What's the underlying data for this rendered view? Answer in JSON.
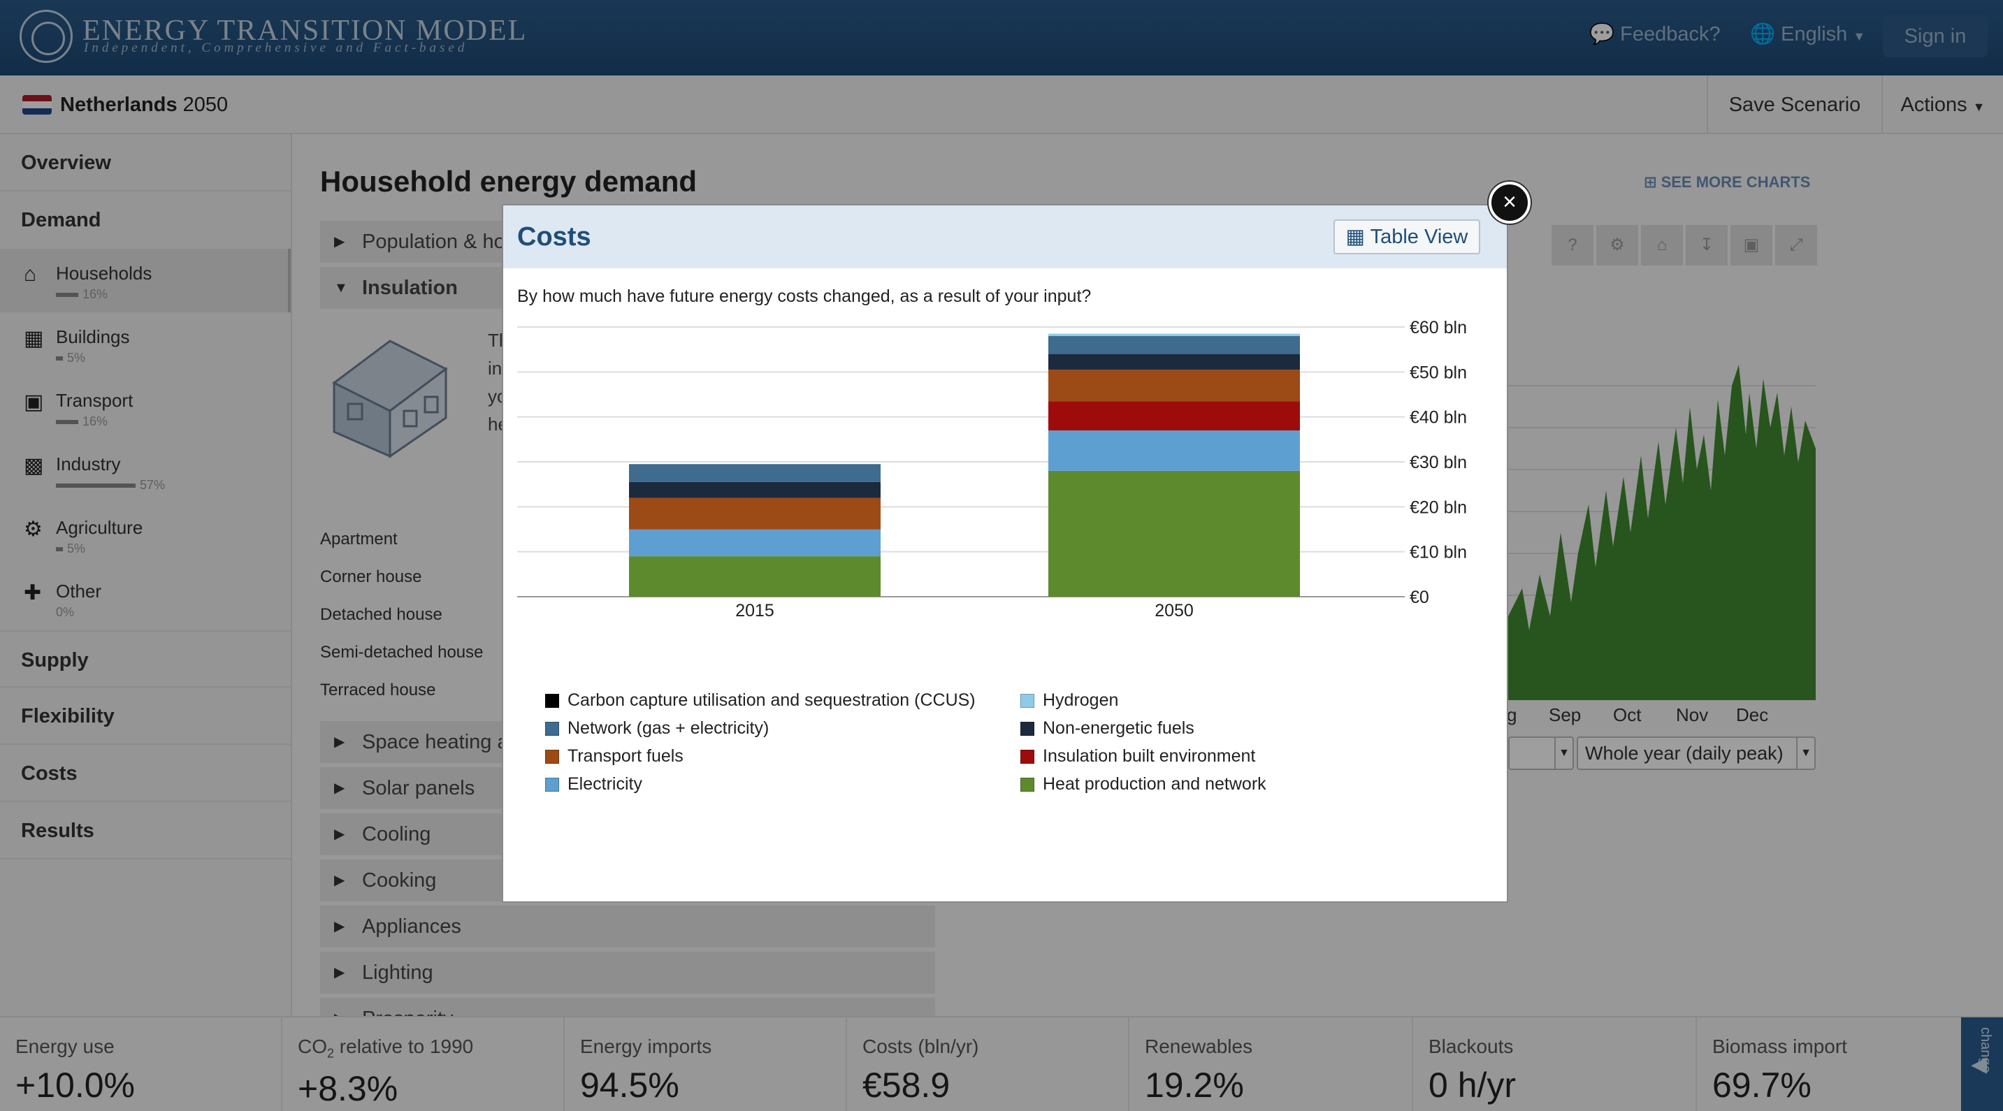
{
  "header": {
    "brand_title": "ENERGY TRANSITION MODEL",
    "brand_subtitle": "Independent, Comprehensive and Fact-based",
    "feedback": "Feedback?",
    "language": "English",
    "signin": "Sign in"
  },
  "scenario": {
    "country": "Netherlands",
    "year": "2050",
    "save": "Save Scenario",
    "actions": "Actions"
  },
  "sidebar": {
    "sections": [
      "Overview",
      "Demand",
      "Supply",
      "Flexibility",
      "Costs",
      "Results"
    ],
    "demand_items": [
      {
        "label": "Households",
        "pct": "16%",
        "share": 16,
        "icon": "home-icon"
      },
      {
        "label": "Buildings",
        "pct": "5%",
        "share": 5,
        "icon": "building-icon"
      },
      {
        "label": "Transport",
        "pct": "16%",
        "share": 16,
        "icon": "car-icon"
      },
      {
        "label": "Industry",
        "pct": "57%",
        "share": 57,
        "icon": "factory-icon"
      },
      {
        "label": "Agriculture",
        "pct": "5%",
        "share": 5,
        "icon": "tractor-icon"
      },
      {
        "label": "Other",
        "pct": "0%",
        "share": 0,
        "icon": "other-icon"
      }
    ]
  },
  "main": {
    "title": "Household energy demand",
    "see_more": "SEE MORE CHARTS",
    "accordion": [
      "Population & ho",
      "Insulation",
      "Space heating a",
      "Solar panels",
      "Cooling",
      "Cooking",
      "Appliances",
      "Lighting",
      "Prosperity"
    ],
    "house_types": [
      "Apartment",
      "Corner house",
      "Detached house",
      "Semi-detached house",
      "Terraced house"
    ],
    "desc_fragments": [
      "Th",
      "in",
      "yo",
      "he"
    ],
    "months": [
      "g",
      "Sep",
      "Oct",
      "Nov",
      "Dec"
    ],
    "select_period": "Whole year (daily peak)"
  },
  "modal": {
    "title": "Costs",
    "table_view": "Table View",
    "question": "By how much have future energy costs changed, as a result of your input?",
    "close": "×"
  },
  "chart_data": {
    "type": "bar",
    "stacked": true,
    "categories": [
      "2015",
      "2050"
    ],
    "y_ticks": [
      "€0",
      "€10 bln",
      "€20 bln",
      "€30 bln",
      "€40 bln",
      "€50 bln",
      "€60 bln"
    ],
    "ylim": [
      0,
      60
    ],
    "y_axis_position": "right",
    "grid": true,
    "legend_placement": "bottom",
    "series": [
      {
        "name": "Heat production and network",
        "color": "#5e8a2e",
        "values": [
          9,
          28
        ]
      },
      {
        "name": "Electricity",
        "color": "#5d9fd0",
        "values": [
          6,
          9
        ]
      },
      {
        "name": "Insulation built environment",
        "color": "#9e0b0b",
        "values": [
          0,
          6.5
        ]
      },
      {
        "name": "Transport fuels",
        "color": "#9c4a16",
        "values": [
          7,
          7
        ]
      },
      {
        "name": "Non-energetic fuels",
        "color": "#1c2a3e",
        "values": [
          3.5,
          3.5
        ]
      },
      {
        "name": "Network (gas + electricity)",
        "color": "#3e6b8e",
        "values": [
          4,
          4
        ]
      },
      {
        "name": "Hydrogen",
        "color": "#8ecbe8",
        "values": [
          0,
          0.5
        ]
      },
      {
        "name": "Carbon capture utilisation and sequestration (CCUS)",
        "color": "#000000",
        "values": [
          0,
          0
        ]
      }
    ],
    "legend_order": [
      "Carbon capture utilisation and sequestration (CCUS)",
      "Hydrogen",
      "Network (gas + electricity)",
      "Non-energetic fuels",
      "Transport fuels",
      "Insulation built environment",
      "Electricity",
      "Heat production and network"
    ]
  },
  "kpis": [
    {
      "label": "Energy use",
      "value": "+10.0%"
    },
    {
      "label": "CO",
      "sub": "2",
      "label_rest": " relative to 1990",
      "value": "+8.3%"
    },
    {
      "label": "Energy imports",
      "value": "94.5%"
    },
    {
      "label": "Costs (bln/yr)",
      "value": "€58.9"
    },
    {
      "label": "Renewables",
      "value": "19.2%"
    },
    {
      "label": "Blackouts",
      "value": "0 h/yr"
    },
    {
      "label": "Biomass import",
      "value": "69.7%"
    }
  ],
  "kpi_toggle": "change"
}
